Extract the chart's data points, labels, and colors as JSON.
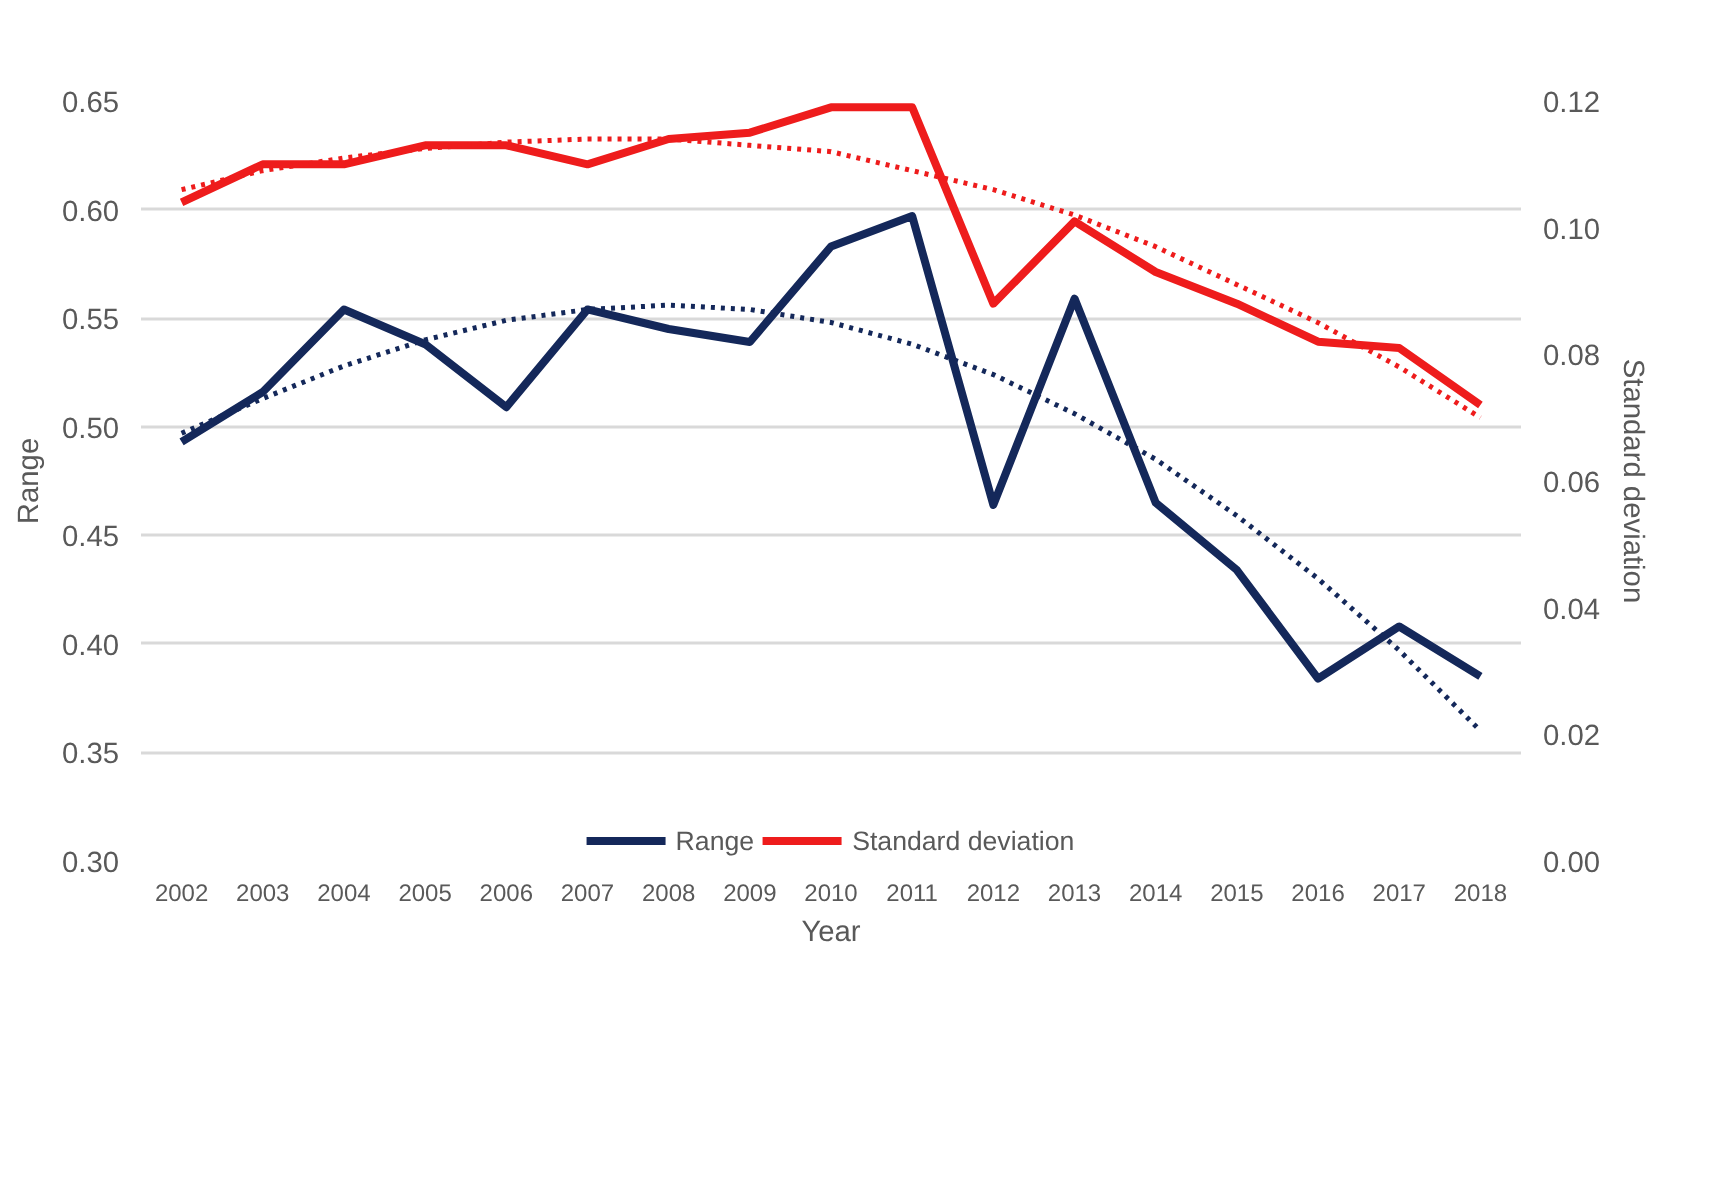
{
  "chart_data": {
    "type": "line",
    "xlabel": "Year",
    "ylabel": "Range",
    "y2label": "Standard deviation",
    "categories": [
      "2002",
      "2003",
      "2004",
      "2005",
      "2006",
      "2007",
      "2008",
      "2009",
      "2010",
      "2011",
      "2012",
      "2013",
      "2014",
      "2015",
      "2016",
      "2017",
      "2018"
    ],
    "series": [
      {
        "name": "Range",
        "color": "#14285a",
        "values": [
          0.493,
          0.516,
          0.554,
          0.538,
          0.509,
          0.554,
          0.545,
          0.539,
          0.583,
          0.597,
          0.464,
          0.559,
          0.465,
          0.434,
          0.384,
          0.408,
          0.385
        ]
      },
      {
        "name": "Standard deviation",
        "color": "#ee1c1c",
        "axis": "y2",
        "values": [
          0.104,
          0.11,
          0.11,
          0.113,
          0.113,
          0.11,
          0.114,
          0.115,
          0.119,
          0.119,
          0.088,
          0.101,
          0.093,
          0.088,
          0.082,
          0.081,
          0.072
        ]
      },
      {
        "color": "#14285a",
        "line_style": "dotted",
        "values": [
          0.497,
          0.513,
          0.528,
          0.54,
          0.549,
          0.554,
          0.556,
          0.554,
          0.548,
          0.538,
          0.524,
          0.506,
          0.485,
          0.459,
          0.43,
          0.397,
          0.36
        ]
      },
      {
        "color": "#ee1c1c",
        "line_style": "dotted",
        "axis": "y2",
        "values": [
          0.106,
          0.109,
          0.111,
          0.1125,
          0.1135,
          0.114,
          0.114,
          0.113,
          0.112,
          0.109,
          0.106,
          0.102,
          0.097,
          0.091,
          0.085,
          0.078,
          0.07
        ]
      }
    ],
    "ylim": [
      0.3,
      0.65
    ],
    "yticks": [
      {
        "value": 0.3,
        "label": "0.30"
      },
      {
        "value": 0.35,
        "label": "0.35"
      },
      {
        "value": 0.4,
        "label": "0.40"
      },
      {
        "value": 0.45,
        "label": "0.45"
      },
      {
        "value": 0.5,
        "label": "0.50"
      },
      {
        "value": 0.55,
        "label": "0.55"
      },
      {
        "value": 0.6,
        "label": "0.60"
      },
      {
        "value": 0.65,
        "label": "0.65"
      }
    ],
    "y2lim": [
      0.0,
      0.12
    ],
    "y2ticks": [
      {
        "value": 0.0,
        "label": "0.00"
      },
      {
        "value": 0.02,
        "label": "0.02"
      },
      {
        "value": 0.04,
        "label": "0.04"
      },
      {
        "value": 0.06,
        "label": "0.06"
      },
      {
        "value": 0.08,
        "label": "0.08"
      },
      {
        "value": 0.1,
        "label": "0.10"
      },
      {
        "value": 0.12,
        "label": "0.12"
      }
    ],
    "grid": "y",
    "legend": "bottom",
    "marker": "none",
    "line_style": "solid"
  }
}
